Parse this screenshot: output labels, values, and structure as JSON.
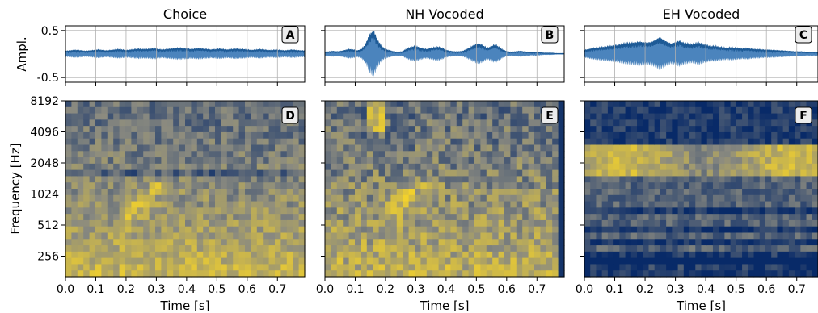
{
  "chart_data": {
    "type": "spectrogram",
    "layout": "2 rows x 3 columns",
    "colors": {
      "waveform": "#2c6fb1",
      "spectrogram_low": "#082a68",
      "spectrogram_mid": "#8a8a80",
      "spectrogram_high": "#f2d12c",
      "grid": "#b0b0b0"
    },
    "grid": true,
    "columns": [
      {
        "title": "Choice",
        "time_ticks": [
          "0.0",
          "0.1",
          "0.2",
          "0.3",
          "0.4",
          "0.5",
          "0.6",
          "0.7"
        ],
        "xlim": [
          0,
          0.79
        ],
        "wave_label": "A",
        "spec_label": "D",
        "wave_envelope": [
          0.06,
          0.07,
          0.08,
          0.08,
          0.07,
          0.06,
          0.07,
          0.08,
          0.09,
          0.08,
          0.07,
          0.08,
          0.09,
          0.1,
          0.09,
          0.08,
          0.09,
          0.1,
          0.11,
          0.1,
          0.1,
          0.11,
          0.12,
          0.1,
          0.09,
          0.1,
          0.11,
          0.12,
          0.13,
          0.12,
          0.11,
          0.1,
          0.11,
          0.12,
          0.11,
          0.1,
          0.09,
          0.1,
          0.11,
          0.1,
          0.09,
          0.1,
          0.11,
          0.1,
          0.1,
          0.09,
          0.08,
          0.09,
          0.1,
          0.09,
          0.08,
          0.08,
          0.09,
          0.08,
          0.07,
          0.08,
          0.09,
          0.08,
          0.07,
          0.07
        ]
      },
      {
        "title": "NH Vocoded",
        "time_ticks": [
          "0.0",
          "0.1",
          "0.2",
          "0.3",
          "0.4",
          "0.5",
          "0.6",
          "0.7"
        ],
        "xlim": [
          0,
          0.79
        ],
        "wave_label": "B",
        "spec_label": "E",
        "wave_envelope": [
          0.04,
          0.05,
          0.06,
          0.05,
          0.06,
          0.08,
          0.1,
          0.09,
          0.07,
          0.1,
          0.2,
          0.42,
          0.5,
          0.3,
          0.15,
          0.1,
          0.07,
          0.05,
          0.04,
          0.05,
          0.1,
          0.14,
          0.16,
          0.15,
          0.12,
          0.1,
          0.12,
          0.14,
          0.15,
          0.12,
          0.08,
          0.06,
          0.05,
          0.05,
          0.06,
          0.1,
          0.15,
          0.2,
          0.22,
          0.18,
          0.12,
          0.16,
          0.2,
          0.14,
          0.08,
          0.05,
          0.04,
          0.05,
          0.06,
          0.05,
          0.04,
          0.03,
          0.04,
          0.03,
          0.02,
          0.02,
          0.02,
          0.01,
          0.01,
          0.01
        ]
      },
      {
        "title": "EH Vocoded",
        "time_ticks": [
          "0.0",
          "0.1",
          "0.2",
          "0.3",
          "0.4",
          "0.5",
          "0.6",
          "0.7"
        ],
        "xlim": [
          0,
          0.77
        ],
        "wave_label": "C",
        "spec_label": "F",
        "wave_envelope": [
          0.08,
          0.1,
          0.12,
          0.13,
          0.14,
          0.15,
          0.16,
          0.17,
          0.18,
          0.2,
          0.22,
          0.23,
          0.24,
          0.25,
          0.26,
          0.25,
          0.24,
          0.26,
          0.3,
          0.36,
          0.3,
          0.25,
          0.22,
          0.25,
          0.28,
          0.24,
          0.22,
          0.2,
          0.22,
          0.24,
          0.2,
          0.18,
          0.16,
          0.17,
          0.15,
          0.14,
          0.13,
          0.14,
          0.13,
          0.12,
          0.11,
          0.12,
          0.11,
          0.1,
          0.1,
          0.09,
          0.09,
          0.08,
          0.08,
          0.07,
          0.07,
          0.06,
          0.06,
          0.05,
          0.05,
          0.05,
          0.04,
          0.04,
          0.04,
          0.04
        ]
      }
    ],
    "waveform_ylabel": "Ampl.",
    "waveform_ylim": [
      -0.6,
      0.6
    ],
    "waveform_yticks": [
      "0.5",
      "-0.5"
    ],
    "spectrogram_ylabel": "Frequency [Hz]",
    "spectrogram_yticks": [
      "8192",
      "4096",
      "2048",
      "1024",
      "512",
      "256"
    ],
    "xlabel": "Time [s]"
  }
}
